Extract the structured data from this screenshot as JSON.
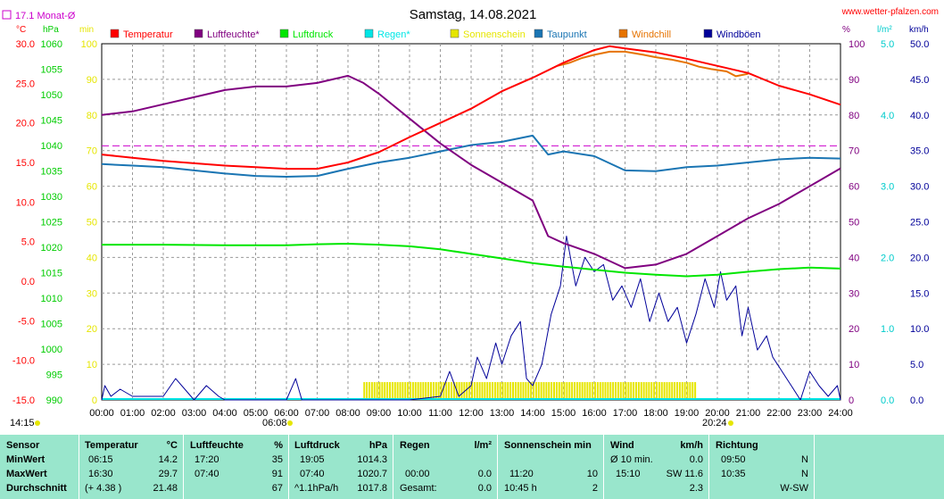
{
  "header": {
    "title": "Samstag, 14.08.2021",
    "site": "www.wetter-pfalzen.com",
    "monthly_avg": "17.1 Monat-Ø"
  },
  "axes": {
    "temp_unit": "°C",
    "pressure_unit": "hPa",
    "sun_unit": "min",
    "humidity_unit": "%",
    "rain_unit": "l/m²",
    "wind_unit": "km/h",
    "temp_ticks": [
      "30.0",
      "25.0",
      "20.0",
      "15.0",
      "10.0",
      "5.0",
      "0.0",
      "-5.0",
      "-10.0",
      "-15.0"
    ],
    "pressure_ticks": [
      "1060",
      "1055",
      "1050",
      "1045",
      "1040",
      "1035",
      "1030",
      "1025",
      "1020",
      "1015",
      "1010",
      "1005",
      "1000",
      "995",
      "990"
    ],
    "sun_ticks": [
      "100",
      "90",
      "80",
      "70",
      "60",
      "50",
      "40",
      "30",
      "20",
      "10",
      "0"
    ],
    "humidity_ticks": [
      "100",
      "90",
      "80",
      "70",
      "60",
      "50",
      "40",
      "30",
      "20",
      "10",
      "0"
    ],
    "rain_ticks": [
      "5.0",
      "4.0",
      "3.0",
      "2.0",
      "1.0",
      "0.0"
    ],
    "wind_ticks": [
      "50.0",
      "45.0",
      "40.0",
      "35.0",
      "30.0",
      "25.0",
      "20.0",
      "15.0",
      "10.0",
      "5.0",
      "0.0"
    ],
    "time_ticks": [
      "00:00",
      "01:00",
      "02:00",
      "03:00",
      "04:00",
      "05:00",
      "06:00",
      "07:00",
      "08:00",
      "09:00",
      "10:00",
      "11:00",
      "12:00",
      "13:00",
      "14:00",
      "15:00",
      "16:00",
      "17:00",
      "18:00",
      "19:00",
      "20:00",
      "21:00",
      "22:00",
      "23:00",
      "24:00"
    ],
    "sunrise": "06:08",
    "sunset": "20:24",
    "moon_time": "14:15"
  },
  "legend": [
    {
      "label": "Temperatur",
      "color": "#ff0000"
    },
    {
      "label": "Luftfeuchte*",
      "color": "#800080"
    },
    {
      "label": "Luftdruck",
      "color": "#00e600"
    },
    {
      "label": "Regen*",
      "color": "#00e6e6"
    },
    {
      "label": "Sonnenschein",
      "color": "#e6e600"
    },
    {
      "label": "Taupunkt",
      "color": "#1a75b3"
    },
    {
      "label": "Windchill",
      "color": "#e67300"
    },
    {
      "label": "Windböen",
      "color": "#000099"
    }
  ],
  "chart_data": {
    "type": "line",
    "x_unit": "hours",
    "xlim": [
      0,
      24
    ],
    "temp_ylim": [
      -15,
      30
    ],
    "pressure_ylim": [
      990,
      1060
    ],
    "humidity_ylim": [
      0,
      100
    ],
    "sun_ylim": [
      0,
      100
    ],
    "wind_ylim": [
      0,
      50
    ],
    "rain_ylim": [
      0,
      5
    ],
    "monthly_avg_temp": 17.1,
    "series": [
      {
        "name": "Temperatur",
        "color": "#ff0000",
        "axis": "temp",
        "points": [
          [
            0,
            16.0
          ],
          [
            1,
            15.6
          ],
          [
            2,
            15.2
          ],
          [
            3,
            14.9
          ],
          [
            4,
            14.6
          ],
          [
            5,
            14.4
          ],
          [
            6,
            14.2
          ],
          [
            7,
            14.2
          ],
          [
            8,
            15.0
          ],
          [
            9,
            16.3
          ],
          [
            10,
            18.2
          ],
          [
            11,
            20.0
          ],
          [
            12,
            21.8
          ],
          [
            13,
            24.0
          ],
          [
            14,
            25.7
          ],
          [
            15,
            27.6
          ],
          [
            16,
            29.2
          ],
          [
            16.5,
            29.7
          ],
          [
            17,
            29.4
          ],
          [
            18,
            28.9
          ],
          [
            19,
            28.1
          ],
          [
            20,
            27.2
          ],
          [
            21,
            26.3
          ],
          [
            22,
            24.7
          ],
          [
            23,
            23.6
          ],
          [
            24,
            22.3
          ]
        ]
      },
      {
        "name": "Windchill",
        "color": "#e67300",
        "axis": "temp",
        "points": [
          [
            14.8,
            27.2
          ],
          [
            15.2,
            27.6
          ],
          [
            15.6,
            28.2
          ],
          [
            16,
            28.6
          ],
          [
            16.5,
            29.0
          ],
          [
            17,
            29.0
          ],
          [
            17.6,
            28.6
          ],
          [
            18,
            28.3
          ],
          [
            18.5,
            28.0
          ],
          [
            19,
            27.6
          ],
          [
            19.4,
            27.1
          ],
          [
            19.8,
            26.8
          ],
          [
            20.3,
            26.5
          ],
          [
            20.6,
            25.9
          ],
          [
            21,
            26.2
          ]
        ]
      },
      {
        "name": "Luftfeuchte*",
        "color": "#800080",
        "axis": "humidity",
        "points": [
          [
            0,
            80
          ],
          [
            1,
            81
          ],
          [
            2,
            83
          ],
          [
            3,
            85
          ],
          [
            4,
            87
          ],
          [
            5,
            88
          ],
          [
            6,
            88
          ],
          [
            7,
            89
          ],
          [
            7.5,
            90
          ],
          [
            8,
            91
          ],
          [
            8.5,
            89
          ],
          [
            9,
            86
          ],
          [
            10,
            79
          ],
          [
            11,
            72
          ],
          [
            12,
            66
          ],
          [
            13,
            61
          ],
          [
            14,
            56
          ],
          [
            14.5,
            46
          ],
          [
            15,
            44
          ],
          [
            16,
            41
          ],
          [
            17,
            37
          ],
          [
            18,
            38
          ],
          [
            19,
            41
          ],
          [
            20,
            46
          ],
          [
            21,
            51
          ],
          [
            22,
            55
          ],
          [
            23,
            60
          ],
          [
            24,
            65
          ]
        ]
      },
      {
        "name": "Luftdruck",
        "color": "#00e600",
        "axis": "pressure",
        "points": [
          [
            0,
            1020.5
          ],
          [
            2,
            1020.5
          ],
          [
            4,
            1020.4
          ],
          [
            6,
            1020.4
          ],
          [
            7,
            1020.6
          ],
          [
            8,
            1020.7
          ],
          [
            9,
            1020.5
          ],
          [
            10,
            1020.2
          ],
          [
            11,
            1019.6
          ],
          [
            12,
            1018.7
          ],
          [
            13,
            1017.8
          ],
          [
            14,
            1016.9
          ],
          [
            15,
            1016.2
          ],
          [
            16,
            1015.6
          ],
          [
            17,
            1015.0
          ],
          [
            18,
            1014.6
          ],
          [
            19,
            1014.3
          ],
          [
            20,
            1014.6
          ],
          [
            21,
            1015.2
          ],
          [
            22,
            1015.7
          ],
          [
            23,
            1016.0
          ],
          [
            24,
            1015.8
          ]
        ]
      },
      {
        "name": "Taupunkt",
        "color": "#1a75b3",
        "axis": "temp",
        "points": [
          [
            0,
            14.8
          ],
          [
            1,
            14.6
          ],
          [
            2,
            14.4
          ],
          [
            3,
            14.0
          ],
          [
            4,
            13.6
          ],
          [
            5,
            13.3
          ],
          [
            6,
            13.2
          ],
          [
            7,
            13.3
          ],
          [
            8,
            14.2
          ],
          [
            9,
            15.0
          ],
          [
            10,
            15.6
          ],
          [
            11,
            16.4
          ],
          [
            12,
            17.2
          ],
          [
            13,
            17.6
          ],
          [
            14,
            18.4
          ],
          [
            14.5,
            16.0
          ],
          [
            15,
            16.4
          ],
          [
            16,
            15.8
          ],
          [
            17,
            14.0
          ],
          [
            18,
            13.9
          ],
          [
            19,
            14.4
          ],
          [
            20,
            14.6
          ],
          [
            21,
            15.0
          ],
          [
            22,
            15.4
          ],
          [
            23,
            15.6
          ],
          [
            24,
            15.5
          ]
        ]
      },
      {
        "name": "Windböen",
        "color": "#000099",
        "axis": "wind",
        "points": [
          [
            0,
            0
          ],
          [
            0.1,
            2
          ],
          [
            0.3,
            0.5
          ],
          [
            0.6,
            1.5
          ],
          [
            1.0,
            0.5
          ],
          [
            2.0,
            0.5
          ],
          [
            2.4,
            3
          ],
          [
            2.8,
            1
          ],
          [
            3.0,
            0
          ],
          [
            3.4,
            2
          ],
          [
            3.8,
            0.5
          ],
          [
            4.0,
            0
          ],
          [
            5.0,
            0
          ],
          [
            6.0,
            0
          ],
          [
            6.3,
            3
          ],
          [
            6.5,
            0
          ],
          [
            8,
            0
          ],
          [
            9,
            0
          ],
          [
            10,
            0
          ],
          [
            11,
            0.5
          ],
          [
            11.3,
            4
          ],
          [
            11.6,
            0.5
          ],
          [
            12,
            2
          ],
          [
            12.2,
            6
          ],
          [
            12.5,
            3
          ],
          [
            12.8,
            8
          ],
          [
            13.0,
            5
          ],
          [
            13.3,
            9
          ],
          [
            13.6,
            11
          ],
          [
            13.8,
            3
          ],
          [
            14.0,
            2
          ],
          [
            14.3,
            5
          ],
          [
            14.6,
            12
          ],
          [
            14.9,
            16
          ],
          [
            15.1,
            23
          ],
          [
            15.4,
            16
          ],
          [
            15.7,
            20
          ],
          [
            16.0,
            18
          ],
          [
            16.3,
            19
          ],
          [
            16.6,
            14
          ],
          [
            16.9,
            16
          ],
          [
            17.2,
            13
          ],
          [
            17.5,
            17
          ],
          [
            17.8,
            11
          ],
          [
            18.1,
            15
          ],
          [
            18.4,
            11
          ],
          [
            18.7,
            13
          ],
          [
            19.0,
            8
          ],
          [
            19.3,
            12
          ],
          [
            19.6,
            17
          ],
          [
            19.9,
            13
          ],
          [
            20.1,
            18
          ],
          [
            20.3,
            14
          ],
          [
            20.6,
            16
          ],
          [
            20.8,
            9
          ],
          [
            21.0,
            13
          ],
          [
            21.3,
            7
          ],
          [
            21.6,
            9
          ],
          [
            21.8,
            6
          ],
          [
            22.1,
            4
          ],
          [
            22.4,
            2
          ],
          [
            22.7,
            0
          ],
          [
            23.0,
            4
          ],
          [
            23.3,
            2
          ],
          [
            23.6,
            0.5
          ],
          [
            23.9,
            2
          ],
          [
            24,
            0
          ]
        ]
      }
    ],
    "sunshine_bars": {
      "start": 8.5,
      "end": 19.3,
      "value": 5
    }
  },
  "stats": {
    "headers": {
      "sensor": "Sensor",
      "temp": "Temperatur",
      "temp_unit": "°C",
      "hum": "Luftfeuchte",
      "hum_unit": "%",
      "pres": "Luftdruck",
      "pres_unit": "hPa",
      "rain": "Regen",
      "rain_unit": "l/m²",
      "sun": "Sonnenschein min",
      "wind": "Wind",
      "wind_unit": "km/h",
      "dir": "Richtung"
    },
    "rows": [
      {
        "label": "MinWert",
        "t_time": "06:15",
        "t_val": "14.2",
        "h_time": "17:20",
        "h_val": "35",
        "p_time": "19:05",
        "p_val": "1014.3",
        "r_time": "",
        "r_val": "",
        "s_time": "",
        "s_val": "",
        "w_time": "Ø 10 min.",
        "w_val": "0.0",
        "d_time": "09:50",
        "d_val": "N"
      },
      {
        "label": "MaxWert",
        "t_time": "16:30",
        "t_val": "29.7",
        "h_time": "07:40",
        "h_val": "91",
        "p_time": "07:40",
        "p_val": "1020.7",
        "r_time": "00:00",
        "r_val": "0.0",
        "s_time": "11:20",
        "s_val": "10",
        "w_time": "15:10",
        "w_val": "SW 11.6",
        "d_time": "10:35",
        "d_val": "N"
      },
      {
        "label": "Durchschnitt",
        "t_time": "(+ 4.38 )",
        "t_val": "21.48",
        "h_time": "",
        "h_val": "67",
        "p_time": "^1.1hPa/h",
        "p_val": "1017.8",
        "r_time": "Gesamt:",
        "r_val": "0.0",
        "s_time": "10:45 h",
        "s_val": "2",
        "w_time": "",
        "w_val": "2.3",
        "d_time": "",
        "d_val": "W-SW"
      }
    ]
  }
}
